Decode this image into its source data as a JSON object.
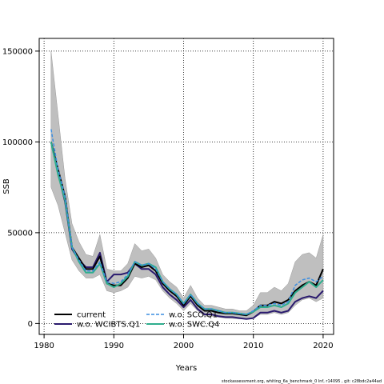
{
  "chart_data": {
    "type": "line",
    "title": "",
    "xlabel": "Years",
    "ylabel": "SSB",
    "xlim": [
      1979.3,
      2021.5
    ],
    "ylim": [
      -6000,
      157000
    ],
    "xticks": [
      1980,
      1990,
      2000,
      2010,
      2020
    ],
    "yticks": [
      0,
      50000,
      100000,
      150000
    ],
    "ytick_labels": [
      "0",
      "50000",
      "100000",
      "150000"
    ],
    "grid": true,
    "legend_position": "bottom-left",
    "caption": "stockassessment.org, whiting_6a_benchmark_0 Inf, r14095 , git: c28bdc2a44ad",
    "x": [
      1981,
      1982,
      1983,
      1984,
      1985,
      1986,
      1987,
      1988,
      1989,
      1990,
      1991,
      1992,
      1993,
      1994,
      1995,
      1996,
      1997,
      1998,
      1999,
      2000,
      2001,
      2002,
      2003,
      2004,
      2005,
      2006,
      2007,
      2008,
      2009,
      2010,
      2011,
      2012,
      2013,
      2014,
      2015,
      2016,
      2017,
      2018,
      2019,
      2020
    ],
    "confidence_band": {
      "name": "",
      "color": "#bfbfbf",
      "upper": [
        150000,
        115000,
        80000,
        55000,
        45000,
        38000,
        37000,
        49000,
        30000,
        29000,
        29000,
        33000,
        44000,
        40000,
        41000,
        36000,
        27000,
        23000,
        20000,
        14000,
        21000,
        14000,
        10000,
        10000,
        9000,
        8000,
        8000,
        7000,
        7000,
        10000,
        17000,
        17000,
        20000,
        18000,
        22000,
        34000,
        38000,
        39000,
        36000,
        49000
      ],
      "lower": [
        75000,
        65000,
        50000,
        35000,
        29000,
        25000,
        25000,
        27000,
        18000,
        17000,
        18000,
        20000,
        26000,
        25000,
        26000,
        24000,
        18000,
        14000,
        11000,
        7000,
        11000,
        7000,
        4000,
        4000,
        3500,
        3000,
        2800,
        2500,
        2500,
        3000,
        5000,
        5000,
        6000,
        5000,
        6000,
        10000,
        13000,
        14000,
        12000,
        14000
      ]
    },
    "series": [
      {
        "name": "current",
        "color": "#000000",
        "dash": "",
        "width": 2,
        "values": [
          100000,
          85000,
          70000,
          42000,
          36000,
          30000,
          30000,
          37000,
          22000,
          21000,
          21000,
          25000,
          33000,
          31000,
          32000,
          29000,
          22000,
          18000,
          15000,
          10000,
          15000,
          10000,
          7000,
          7000,
          6000,
          5500,
          5500,
          5000,
          4500,
          6500,
          10000,
          10000,
          12000,
          11000,
          13000,
          18000,
          21000,
          23000,
          21000,
          30000
        ]
      },
      {
        "name": "w.o. WCIBTS.Q1",
        "color": "#2a1a6e",
        "dash": "",
        "width": 2,
        "values": [
          100000,
          83000,
          67000,
          41000,
          35000,
          31000,
          31000,
          39000,
          23000,
          27000,
          27000,
          28000,
          33000,
          30000,
          30000,
          27000,
          20000,
          16000,
          13000,
          9000,
          13000,
          8000,
          5000,
          5000,
          4000,
          3500,
          3500,
          3000,
          2500,
          3000,
          6000,
          6000,
          7000,
          6000,
          7000,
          12000,
          14000,
          15000,
          14000,
          18000
        ]
      },
      {
        "name": "w.o. SCO.Q1",
        "color": "#3c8ee0",
        "dash": "4,2",
        "width": 1.5,
        "values": [
          107000,
          85000,
          70000,
          42000,
          35000,
          29000,
          29000,
          34000,
          23000,
          22000,
          23000,
          27000,
          34000,
          32000,
          33000,
          30000,
          23000,
          19000,
          16000,
          11000,
          16000,
          11000,
          8000,
          8000,
          7000,
          6000,
          6000,
          5500,
          5000,
          7000,
          10000,
          10000,
          11000,
          10000,
          12000,
          21000,
          24000,
          25000,
          23000,
          26000
        ]
      },
      {
        "name": "w.o. SWC.Q4",
        "color": "#2fae8e",
        "dash": "",
        "width": 2,
        "values": [
          100000,
          82000,
          68000,
          42000,
          34000,
          28000,
          28000,
          33000,
          22000,
          20000,
          22000,
          26000,
          34000,
          32000,
          33000,
          31000,
          23000,
          19000,
          16000,
          11000,
          16000,
          11000,
          8000,
          8000,
          7000,
          6000,
          6000,
          5500,
          5000,
          6500,
          9000,
          9000,
          10000,
          9000,
          11000,
          17000,
          20000,
          23000,
          20000,
          24000
        ]
      }
    ]
  }
}
